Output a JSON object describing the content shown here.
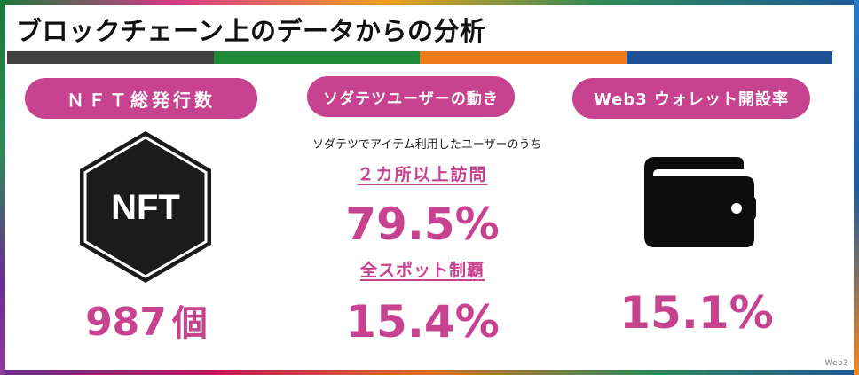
{
  "title": "ブロックチェーン上のデータからの分析",
  "color_bar": [
    "#404040",
    "#1e8a3a",
    "#ef7a1a",
    "#1e5296"
  ],
  "accent_color": "#c7428f",
  "nft": {
    "pill_label": "ＮＦＴ総発行数",
    "icon_text": "NFT",
    "icon_name": "nft-hexagon-icon",
    "count": "987",
    "unit": "個"
  },
  "sodatetsu": {
    "pill_label": "ソダテツユーザーの動き",
    "caption": "ソダテツでアイテム利用したユーザーのうち",
    "metric1_label": "２カ所以上訪問",
    "metric1_value": "79.5%",
    "metric2_label": "全スポット制覇",
    "metric2_value": "15.4%"
  },
  "web3": {
    "pill_label": "Web3 ウォレット開設率",
    "icon_name": "wallet-icon",
    "rate": "15.1%"
  },
  "watermark": "Web3"
}
